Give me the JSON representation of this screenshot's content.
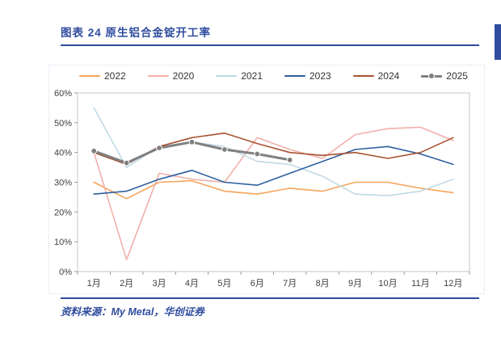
{
  "header": {
    "title": "图表 24  原生铝合金锭开工率"
  },
  "footer": {
    "source": "资料来源：My Metal，华创证券"
  },
  "colors": {
    "accent_blue": "#2F4C9E",
    "axis_text": "#404040",
    "plot_border": "#C6C6C6"
  },
  "chart_data": {
    "type": "line",
    "title": "原生铝合金锭开工率",
    "categories": [
      "1月",
      "2月",
      "3月",
      "4月",
      "5月",
      "6月",
      "7月",
      "8月",
      "9月",
      "10月",
      "11月",
      "12月"
    ],
    "xlabel": "",
    "ylabel": "",
    "ylim": [
      0,
      60
    ],
    "ytick_step": 10,
    "ytick_format": "percent",
    "grid": false,
    "legend_position": "top",
    "series": [
      {
        "name": "2022",
        "color": "#F8A45C",
        "width": 1.6,
        "marker": false,
        "values": [
          30,
          24.5,
          30,
          30.5,
          27,
          26,
          28,
          27,
          30,
          30,
          28,
          26.5
        ]
      },
      {
        "name": "2020",
        "color": "#F1AFA9",
        "width": 1.6,
        "marker": false,
        "values": [
          40,
          4,
          33,
          31,
          30,
          45,
          41,
          38,
          46,
          48,
          48.5,
          44
        ]
      },
      {
        "name": "2021",
        "color": "#BFDAE5",
        "width": 1.6,
        "marker": false,
        "values": [
          55,
          35,
          42,
          43.5,
          42,
          37,
          36,
          32,
          26,
          25.5,
          27,
          31
        ]
      },
      {
        "name": "2023",
        "color": "#2F5F9E",
        "width": 1.6,
        "marker": false,
        "values": [
          26,
          27,
          31,
          34,
          30,
          29,
          33,
          37,
          41,
          42,
          39.5,
          36
        ]
      },
      {
        "name": "2024",
        "color": "#A85230",
        "width": 1.6,
        "marker": false,
        "values": [
          40,
          36,
          42,
          45,
          46.5,
          43,
          40,
          39,
          40,
          38,
          40,
          45
        ]
      },
      {
        "name": "2025",
        "color": "#808080",
        "width": 3,
        "marker": true,
        "values": [
          40.5,
          36.5,
          41.5,
          43.5,
          41,
          39.5,
          37.5,
          null,
          null,
          null,
          null,
          null
        ]
      }
    ]
  }
}
